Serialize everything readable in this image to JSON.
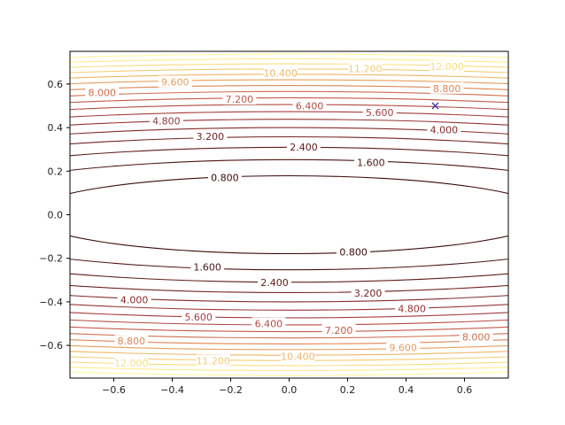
{
  "chart_data": {
    "type": "contour",
    "title": "",
    "xlabel": "",
    "ylabel": "",
    "function": "z = x^2 + 25*y^2",
    "xlim": [
      -0.75,
      0.75
    ],
    "ylim": [
      -0.75,
      0.75
    ],
    "grid": false,
    "levels": [
      0.8,
      1.6,
      2.4,
      3.2,
      4.0,
      4.8,
      5.6,
      6.4,
      7.2,
      8.0,
      8.8,
      9.6,
      10.4,
      11.2,
      12.0,
      12.8,
      13.6
    ],
    "colormap": "hot",
    "colors": [
      "#3a0a0a",
      "#4d1414",
      "#601c1c",
      "#722424",
      "#842c2c",
      "#953535",
      "#a53e3e",
      "#b44a44",
      "#c35a4a",
      "#d06e50",
      "#dc8656",
      "#e69e5e",
      "#efb568",
      "#f5cb74",
      "#f9dd82",
      "#fcec90",
      "#fff69d"
    ],
    "x_ticks": [
      "−0.6",
      "−0.4",
      "−0.2",
      "0.0",
      "0.2",
      "0.4",
      "0.6"
    ],
    "x_tick_values": [
      -0.6,
      -0.4,
      -0.2,
      0.0,
      0.2,
      0.4,
      0.6
    ],
    "y_ticks": [
      "0.6",
      "0.4",
      "0.2",
      "0.0",
      "−0.2",
      "−0.4",
      "−0.6"
    ],
    "y_tick_values": [
      0.6,
      0.4,
      0.2,
      0.0,
      -0.2,
      -0.4,
      -0.6
    ],
    "contour_labels": [
      {
        "text": "0.800",
        "x": -0.22,
        "y": 0.17
      },
      {
        "text": "1.600",
        "x": 0.28,
        "y": 0.24
      },
      {
        "text": "2.400",
        "x": 0.05,
        "y": 0.31
      },
      {
        "text": "3.200",
        "x": -0.27,
        "y": 0.36
      },
      {
        "text": "4.000",
        "x": 0.53,
        "y": 0.39
      },
      {
        "text": "4.800",
        "x": -0.42,
        "y": 0.43
      },
      {
        "text": "5.600",
        "x": 0.31,
        "y": 0.47
      },
      {
        "text": "6.400",
        "x": 0.07,
        "y": 0.5
      },
      {
        "text": "7.200",
        "x": -0.17,
        "y": 0.53
      },
      {
        "text": "8.000",
        "x": -0.64,
        "y": 0.56
      },
      {
        "text": "8.800",
        "x": 0.54,
        "y": 0.58
      },
      {
        "text": "9.600",
        "x": -0.39,
        "y": 0.61
      },
      {
        "text": "10.400",
        "x": -0.03,
        "y": 0.65
      },
      {
        "text": "11.200",
        "x": 0.26,
        "y": 0.67
      },
      {
        "text": "12.000",
        "x": 0.54,
        "y": 0.68
      },
      {
        "text": "0.800",
        "x": 0.22,
        "y": -0.17
      },
      {
        "text": "1.600",
        "x": -0.28,
        "y": -0.24
      },
      {
        "text": "2.400",
        "x": -0.05,
        "y": -0.31
      },
      {
        "text": "3.200",
        "x": 0.27,
        "y": -0.36
      },
      {
        "text": "4.000",
        "x": -0.53,
        "y": -0.39
      },
      {
        "text": "4.800",
        "x": 0.42,
        "y": -0.43
      },
      {
        "text": "5.600",
        "x": -0.31,
        "y": -0.47
      },
      {
        "text": "6.400",
        "x": -0.07,
        "y": -0.5
      },
      {
        "text": "7.200",
        "x": 0.17,
        "y": -0.53
      },
      {
        "text": "8.000",
        "x": 0.64,
        "y": -0.56
      },
      {
        "text": "8.800",
        "x": -0.54,
        "y": -0.58
      },
      {
        "text": "9.600",
        "x": 0.39,
        "y": -0.61
      },
      {
        "text": "10.400",
        "x": 0.03,
        "y": -0.65
      },
      {
        "text": "11.200",
        "x": -0.26,
        "y": -0.67
      },
      {
        "text": "12.000",
        "x": -0.54,
        "y": -0.68
      }
    ],
    "marker": {
      "symbol": "x",
      "x": 0.5,
      "y": 0.5,
      "color": "#3a3aa0"
    }
  }
}
